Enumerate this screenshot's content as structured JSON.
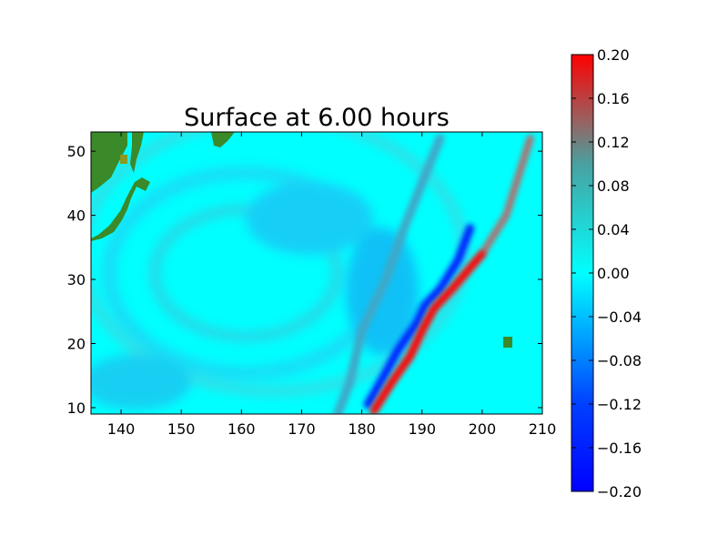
{
  "chart_data": {
    "type": "heatmap",
    "title": "Surface at 6.00 hours",
    "xlabel": "",
    "ylabel": "",
    "xlim": [
      135,
      210
    ],
    "ylim": [
      9,
      53
    ],
    "xticks": [
      140,
      150,
      160,
      170,
      180,
      190,
      200,
      210
    ],
    "yticks": [
      10,
      20,
      30,
      40,
      50
    ],
    "colorbar": {
      "vmin": -0.2,
      "vmax": 0.2,
      "ticks": [
        -0.2,
        -0.16,
        -0.12,
        -0.08,
        -0.04,
        0.0,
        0.04,
        0.08,
        0.12,
        0.16,
        0.2
      ],
      "tick_labels": [
        "−0.20",
        "−0.16",
        "−0.12",
        "−0.08",
        "−0.04",
        "0.00",
        "0.04",
        "0.08",
        "0.12",
        "0.16",
        "0.20"
      ],
      "colors": [
        "#0000ff",
        "#00ffff",
        "#808080",
        "#ff0000"
      ]
    },
    "colors": {
      "ocean": "#00ffff",
      "land": "#3a8a2a",
      "land_highlight": "#8a9a20"
    },
    "wave_front": {
      "positive_crest": [
        [
          182,
          9.5
        ],
        [
          185,
          14
        ],
        [
          188,
          18
        ],
        [
          190,
          22
        ],
        [
          192,
          25.5
        ],
        [
          195,
          28.5
        ],
        [
          200,
          34
        ],
        [
          204,
          40
        ],
        [
          206,
          46
        ],
        [
          208,
          52
        ]
      ],
      "negative_trough": [
        [
          181,
          10.5
        ],
        [
          184,
          15.5
        ],
        [
          186,
          19
        ],
        [
          189,
          23
        ],
        [
          190.5,
          26
        ],
        [
          193,
          28.5
        ],
        [
          196,
          33
        ],
        [
          198,
          38
        ]
      ],
      "secondary_ridge": [
        [
          193,
          52
        ],
        [
          190,
          45
        ],
        [
          187,
          38
        ],
        [
          184,
          30
        ],
        [
          180,
          22
        ],
        [
          178,
          14
        ],
        [
          176,
          9
        ]
      ]
    }
  }
}
